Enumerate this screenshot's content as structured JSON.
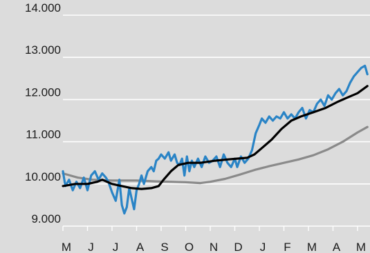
{
  "chart_data": {
    "type": "line",
    "title": "",
    "xlabel": "",
    "ylabel": "",
    "ylim": [
      9000,
      14000
    ],
    "y_ticks": [
      9000,
      10000,
      11000,
      12000,
      13000,
      14000
    ],
    "y_tick_labels": [
      "9.000",
      "10.000",
      "11.000",
      "12.000",
      "13.000",
      "14.000"
    ],
    "x_tick_labels": [
      "M",
      "J",
      "J",
      "A",
      "S",
      "O",
      "N",
      "D",
      "J",
      "F",
      "M",
      "A",
      "M"
    ],
    "grid": "horizontal",
    "legend": "none",
    "series": [
      {
        "color": "#2a84c6",
        "points": [
          [
            0.0,
            10300
          ],
          [
            0.1,
            9950
          ],
          [
            0.25,
            10100
          ],
          [
            0.4,
            9850
          ],
          [
            0.55,
            10050
          ],
          [
            0.7,
            9900
          ],
          [
            0.85,
            10150
          ],
          [
            1.0,
            9850
          ],
          [
            1.15,
            10200
          ],
          [
            1.3,
            10300
          ],
          [
            1.45,
            10100
          ],
          [
            1.6,
            10250
          ],
          [
            1.75,
            10150
          ],
          [
            1.85,
            10050
          ],
          [
            2.0,
            9800
          ],
          [
            2.15,
            9600
          ],
          [
            2.3,
            10100
          ],
          [
            2.4,
            9500
          ],
          [
            2.5,
            9300
          ],
          [
            2.6,
            9450
          ],
          [
            2.7,
            9900
          ],
          [
            2.8,
            9650
          ],
          [
            2.9,
            9400
          ],
          [
            3.0,
            9850
          ],
          [
            3.1,
            10000
          ],
          [
            3.2,
            10200
          ],
          [
            3.3,
            10000
          ],
          [
            3.45,
            10300
          ],
          [
            3.6,
            10400
          ],
          [
            3.7,
            10300
          ],
          [
            3.8,
            10550
          ],
          [
            3.9,
            10600
          ],
          [
            4.0,
            10700
          ],
          [
            4.15,
            10600
          ],
          [
            4.3,
            10750
          ],
          [
            4.4,
            10550
          ],
          [
            4.55,
            10700
          ],
          [
            4.65,
            10500
          ],
          [
            4.75,
            10450
          ],
          [
            4.85,
            10600
          ],
          [
            4.95,
            10200
          ],
          [
            5.05,
            10650
          ],
          [
            5.15,
            10300
          ],
          [
            5.25,
            10550
          ],
          [
            5.35,
            10400
          ],
          [
            5.5,
            10600
          ],
          [
            5.65,
            10400
          ],
          [
            5.8,
            10650
          ],
          [
            5.95,
            10500
          ],
          [
            6.1,
            10550
          ],
          [
            6.25,
            10650
          ],
          [
            6.4,
            10400
          ],
          [
            6.55,
            10700
          ],
          [
            6.7,
            10500
          ],
          [
            6.85,
            10400
          ],
          [
            7.0,
            10600
          ],
          [
            7.1,
            10400
          ],
          [
            7.25,
            10650
          ],
          [
            7.4,
            10500
          ],
          [
            7.55,
            10600
          ],
          [
            7.7,
            10800
          ],
          [
            7.85,
            11200
          ],
          [
            8.0,
            11400
          ],
          [
            8.1,
            11550
          ],
          [
            8.25,
            11450
          ],
          [
            8.4,
            11600
          ],
          [
            8.55,
            11500
          ],
          [
            8.7,
            11600
          ],
          [
            8.85,
            11550
          ],
          [
            9.0,
            11700
          ],
          [
            9.15,
            11550
          ],
          [
            9.3,
            11650
          ],
          [
            9.45,
            11550
          ],
          [
            9.6,
            11700
          ],
          [
            9.75,
            11800
          ],
          [
            9.9,
            11550
          ],
          [
            10.05,
            11750
          ],
          [
            10.2,
            11700
          ],
          [
            10.35,
            11900
          ],
          [
            10.5,
            12000
          ],
          [
            10.65,
            11850
          ],
          [
            10.8,
            12100
          ],
          [
            10.95,
            12000
          ],
          [
            11.1,
            12150
          ],
          [
            11.25,
            12250
          ],
          [
            11.4,
            12100
          ],
          [
            11.55,
            12200
          ],
          [
            11.7,
            12400
          ],
          [
            11.85,
            12550
          ],
          [
            12.0,
            12650
          ],
          [
            12.15,
            12750
          ],
          [
            12.3,
            12800
          ],
          [
            12.4,
            12600
          ]
        ]
      },
      {
        "color": "#000000",
        "points": [
          [
            0.0,
            9950
          ],
          [
            0.5,
            10000
          ],
          [
            1.0,
            10000
          ],
          [
            1.4,
            10050
          ],
          [
            1.6,
            10100
          ],
          [
            2.0,
            10000
          ],
          [
            2.4,
            9950
          ],
          [
            2.8,
            9900
          ],
          [
            3.2,
            9880
          ],
          [
            3.6,
            9900
          ],
          [
            3.9,
            9950
          ],
          [
            4.1,
            10100
          ],
          [
            4.4,
            10300
          ],
          [
            4.7,
            10450
          ],
          [
            5.1,
            10500
          ],
          [
            5.6,
            10500
          ],
          [
            6.2,
            10550
          ],
          [
            6.7,
            10580
          ],
          [
            7.1,
            10600
          ],
          [
            7.5,
            10620
          ],
          [
            7.8,
            10700
          ],
          [
            8.1,
            10850
          ],
          [
            8.5,
            11050
          ],
          [
            8.9,
            11300
          ],
          [
            9.3,
            11500
          ],
          [
            9.7,
            11600
          ],
          [
            10.2,
            11700
          ],
          [
            10.7,
            11800
          ],
          [
            11.2,
            11950
          ],
          [
            11.6,
            12050
          ],
          [
            12.0,
            12150
          ],
          [
            12.4,
            12320
          ]
        ]
      },
      {
        "color": "#8a8a8a",
        "points": [
          [
            0.0,
            10250
          ],
          [
            0.6,
            10150
          ],
          [
            1.2,
            10100
          ],
          [
            2.0,
            10080
          ],
          [
            3.0,
            10080
          ],
          [
            3.8,
            10060
          ],
          [
            4.4,
            10050
          ],
          [
            5.0,
            10040
          ],
          [
            5.6,
            10020
          ],
          [
            6.0,
            10050
          ],
          [
            6.6,
            10120
          ],
          [
            7.2,
            10220
          ],
          [
            7.8,
            10330
          ],
          [
            8.4,
            10420
          ],
          [
            9.0,
            10500
          ],
          [
            9.6,
            10580
          ],
          [
            10.2,
            10680
          ],
          [
            10.8,
            10820
          ],
          [
            11.4,
            11000
          ],
          [
            12.0,
            11220
          ],
          [
            12.4,
            11350
          ]
        ]
      }
    ]
  }
}
